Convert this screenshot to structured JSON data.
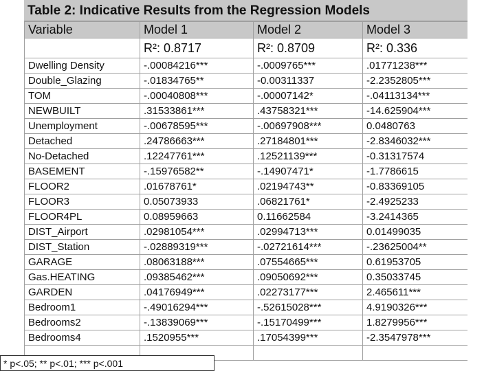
{
  "title": "Table 2: Indicative Results from the Regression Models",
  "table": {
    "header": [
      "Variable",
      "Model 1",
      "Model 2",
      "Model 3"
    ],
    "fit": [
      "R²: 0.8717",
      "R²: 0.8709",
      "R²:  0.336"
    ],
    "rows": [
      [
        "Dwelling Density",
        "-.00084216***",
        "-.0009765***",
        ".01771238***"
      ],
      [
        "Double_Glazing",
        "-.01834765**",
        "-0.00311337",
        "-2.2352805***"
      ],
      [
        "TOM",
        "-.00040808***",
        "-.00007142*",
        "-.04113134***"
      ],
      [
        "NEWBUILT",
        ".31533861***",
        ".43758321***",
        "-14.625904***"
      ],
      [
        "Unemployment",
        "-.00678595***",
        "-.00697908***",
        "0.0480763"
      ],
      [
        "Detached",
        ".24786663***",
        ".27184801***",
        "-2.8346032***"
      ],
      [
        "No-Detached",
        ".12247761***",
        ".12521139***",
        "-0.31317574"
      ],
      [
        "BASEMENT",
        "-.15976582**",
        "-.14907471*",
        "-1.7786615"
      ],
      [
        "FLOOR2",
        ".01678761*",
        ".02194743**",
        "-0.83369105"
      ],
      [
        "FLOOR3",
        "0.05073933",
        ".06821761*",
        "-2.4925233"
      ],
      [
        "FLOOR4PL",
        "0.08959663",
        "0.11662584",
        "-3.2414365"
      ],
      [
        "DIST_Airport",
        ".02981054***",
        ".02994713***",
        "0.01499035"
      ],
      [
        "DIST_Station",
        "-.02889319***",
        "-.02721614***",
        "-.23625004**"
      ],
      [
        "GARAGE",
        ".08063188***",
        ".07554665***",
        "0.61953705"
      ],
      [
        "Gas.HEATING",
        ".09385462***",
        ".09050692***",
        "0.35033745"
      ],
      [
        "GARDEN",
        ".04176949***",
        ".02273177***",
        "2.465611***"
      ],
      [
        "Bedroom1",
        "-.49016294***",
        "-.52615028***",
        "4.9190326***"
      ],
      [
        "Bedrooms2",
        "-.13839069***",
        "-.15170499***",
        "1.8279956***"
      ],
      [
        "Bedrooms4",
        ".1520955***",
        ".17054399***",
        "-2.3547978***"
      ]
    ]
  },
  "footnote": "* p<.05; ** p<.01; *** p<.001"
}
